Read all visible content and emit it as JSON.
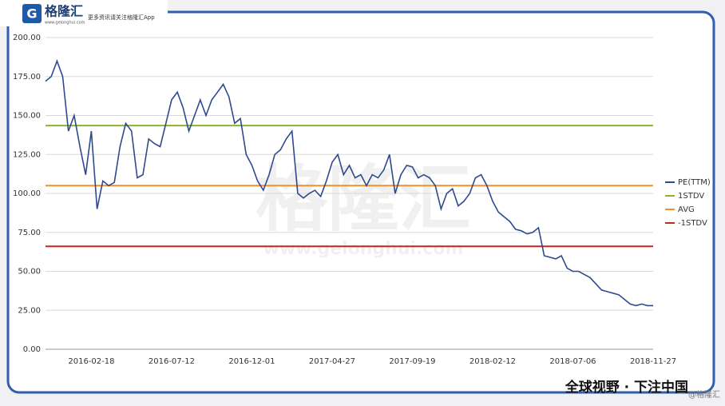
{
  "header": {
    "logo": "格隆汇",
    "site": "www.gelonghui.com",
    "slogan": "更多资讯请关注格隆汇App"
  },
  "watermark": {
    "logo": "格隆汇",
    "site": "www.gelonghui.com"
  },
  "footer": {
    "tagline": "全球视野 · 下注中国",
    "credit": "@格隆汇"
  },
  "chart_data": {
    "type": "line",
    "categories": [
      null,
      null,
      null,
      null,
      null,
      null,
      null,
      null,
      "2016-02-18",
      null,
      null,
      null,
      null,
      null,
      null,
      null,
      null,
      null,
      null,
      null,
      null,
      null,
      "2016-07-12",
      null,
      null,
      null,
      null,
      null,
      null,
      null,
      null,
      null,
      null,
      null,
      null,
      null,
      "2016-12-01",
      null,
      null,
      null,
      null,
      null,
      null,
      null,
      null,
      null,
      null,
      null,
      null,
      null,
      "2017-04-27",
      null,
      null,
      null,
      null,
      null,
      null,
      null,
      null,
      null,
      null,
      null,
      null,
      null,
      "2017-09-19",
      null,
      null,
      null,
      null,
      null,
      null,
      null,
      null,
      null,
      null,
      null,
      null,
      null,
      "2018-02-12",
      null,
      null,
      null,
      null,
      null,
      null,
      null,
      null,
      null,
      null,
      null,
      null,
      null,
      "2018-07-06",
      null,
      null,
      null,
      null,
      null,
      null,
      null,
      null,
      null,
      null,
      null,
      null,
      null,
      "2018-11-27"
    ],
    "series": [
      {
        "name": "PE(TTM)",
        "color": "#2e4a8e",
        "values": [
          172,
          175,
          185,
          175,
          140,
          150,
          130,
          112,
          140,
          90,
          108,
          105,
          107,
          130,
          145,
          140,
          110,
          112,
          135,
          132,
          130,
          145,
          160,
          165,
          155,
          140,
          150,
          160,
          150,
          160,
          165,
          170,
          162,
          145,
          148,
          125,
          118,
          108,
          102,
          112,
          125,
          128,
          135,
          140,
          100,
          97,
          100,
          102,
          98,
          108,
          120,
          125,
          112,
          118,
          110,
          112,
          105,
          112,
          110,
          115,
          125,
          100,
          112,
          118,
          117,
          110,
          112,
          110,
          105,
          90,
          100,
          103,
          92,
          95,
          100,
          110,
          112,
          105,
          95,
          88,
          85,
          82,
          77,
          76,
          74,
          75,
          78,
          60,
          59,
          58,
          60,
          52,
          50,
          50,
          48,
          46,
          42,
          38,
          37,
          36,
          35,
          32,
          29,
          28,
          29,
          28,
          28
        ]
      }
    ],
    "reference_lines": [
      {
        "name": "1STDV",
        "color": "#8db32f",
        "value": 143.5
      },
      {
        "name": "AVG",
        "color": "#f0912e",
        "value": 105
      },
      {
        "name": "-1STDV",
        "color": "#c4271f",
        "value": 66
      }
    ],
    "ylim": [
      0,
      200
    ],
    "yticks": [
      {
        "value": 0,
        "label": "0.00"
      },
      {
        "value": 25,
        "label": "25.00"
      },
      {
        "value": 50,
        "label": "50.00"
      },
      {
        "value": 75,
        "label": "75.00"
      },
      {
        "value": 100,
        "label": "100.00"
      },
      {
        "value": 125,
        "label": "125.00"
      },
      {
        "value": 150,
        "label": "150.00"
      },
      {
        "value": 175,
        "label": "175.00"
      },
      {
        "value": 200,
        "label": "200.00"
      }
    ],
    "grid": true,
    "legend": "right"
  }
}
